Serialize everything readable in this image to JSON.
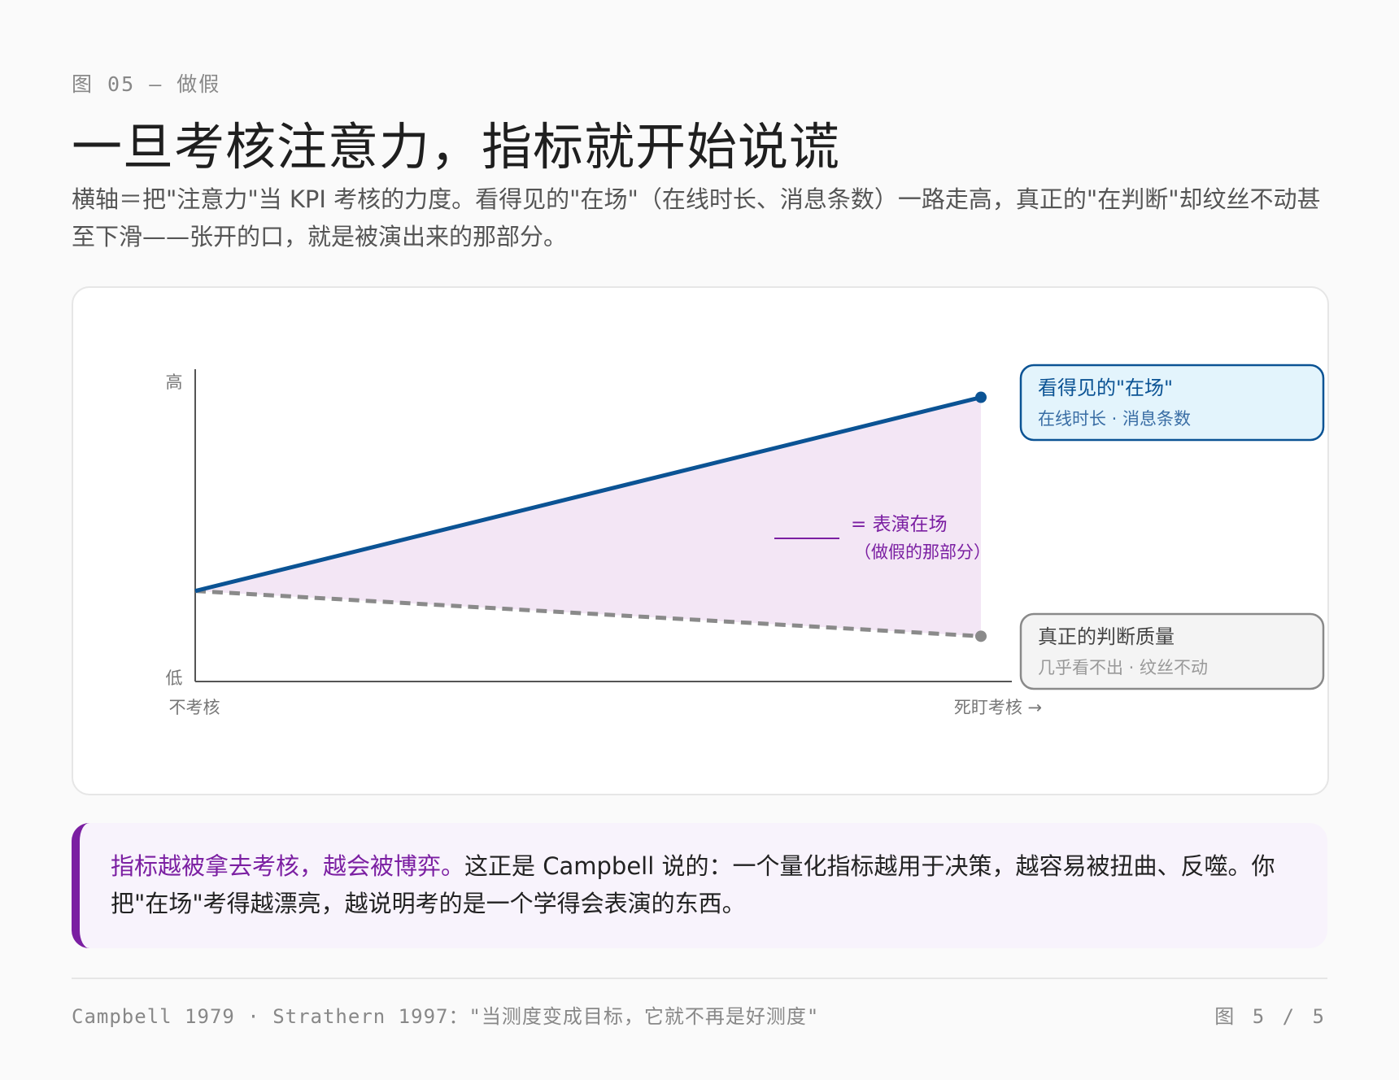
{
  "header": {
    "eyebrow": "图 05 — 做假",
    "title": "一旦考核注意力，指标就开始说谎",
    "subtitle": "横轴＝把\"注意力\"当 KPI 考核的力度。看得见的\"在场\"（在线时长、消息条数）一路走高，真正的\"在判断\"却纹丝不动甚至下滑——张开的口，就是被演出来的那部分。"
  },
  "chart_data": {
    "type": "line",
    "x": [
      0,
      1
    ],
    "xlim": [
      0,
      1
    ],
    "ylim": [
      0,
      1
    ],
    "x_tick_labels": {
      "start": "不考核",
      "end": "死盯考核 →"
    },
    "y_tick_labels": {
      "high": "高",
      "low": "低"
    },
    "series": [
      {
        "name": "看得见的\"在场\"",
        "detail": "在线时长 · 消息条数",
        "values": [
          0.29,
          0.91
        ],
        "color": "#0b5394",
        "style": "solid"
      },
      {
        "name": "真正的判断质量",
        "detail": "几乎看不出 · 纹丝不动",
        "values": [
          0.29,
          0.145
        ],
        "color": "#8a8a8a",
        "style": "dashed"
      }
    ],
    "gap_fill_color": "#f3e6f5",
    "annotation": {
      "label": "= 表演在场",
      "sub": "（做假的那部分）",
      "color": "#7b1fa2"
    }
  },
  "callout": {
    "highlight": "指标越被拿去考核，越会被博弈。",
    "text": "这正是 Campbell 说的：一个量化指标越用于决策，越容易被扭曲、反噬。你把\"在场\"考得越漂亮，越说明考的是一个学得会表演的东西。"
  },
  "footer": {
    "left": "Campbell 1979 · Strathern 1997：\"当测度变成目标，它就不再是好测度\"",
    "right": "图 5 / 5"
  }
}
